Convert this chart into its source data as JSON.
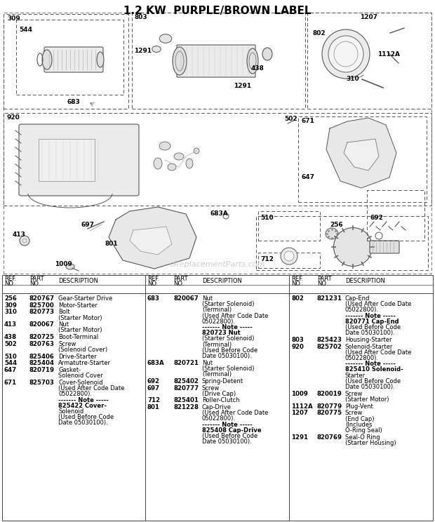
{
  "title": "1.2 KW  PURPLE/BROWN LABEL",
  "title_fontsize": 11,
  "bg": "#ffffff",
  "fg": "#000000",
  "gray": "#888888",
  "lightgray": "#cccccc",
  "diag_bg": "#f5f5f5",
  "watermark": "eReplacementParts.com",
  "col1_rows": [
    [
      "256",
      "820767",
      [
        "Gear-Starter Drive"
      ]
    ],
    [
      "309",
      "825700",
      [
        "Motor-Starter"
      ]
    ],
    [
      "310",
      "820773",
      [
        "Bolt",
        "(Starter Motor)"
      ]
    ],
    [
      "413",
      "820067",
      [
        "Nut",
        "(Starter Motor)"
      ]
    ],
    [
      "438",
      "820725",
      [
        "Boot-Terminal"
      ]
    ],
    [
      "502",
      "820763",
      [
        "Screw",
        "(Solenoid Cover)"
      ]
    ],
    [
      "510",
      "825406",
      [
        "Drive-Starter"
      ]
    ],
    [
      "544",
      "825404",
      [
        "Armatutre-Starter"
      ]
    ],
    [
      "647",
      "820719",
      [
        "Gasket-",
        "Solenoid Cover"
      ]
    ],
    [
      "671",
      "825703",
      [
        "Cover-Solenoid",
        "(Used After Code Date",
        "05022800).",
        "------- Note -----",
        "825422 Cover-",
        "Solenoid",
        "(Used Before Code",
        "Date 05030100)."
      ]
    ]
  ],
  "col2_rows": [
    [
      "683",
      "820067",
      [
        "Nut",
        "(Starter Solenoid)",
        "(Terminal)",
        "(Used After Code Date",
        "05022800).",
        "------- Note -----",
        "820723 Nut",
        "(Starter Solenoid)",
        "(Terminal)",
        "(Used Before Code",
        "Date 05030100)."
      ]
    ],
    [
      "683A",
      "820721",
      [
        "Nut",
        "(Starter Solenoid)",
        "(Terminal)"
      ]
    ],
    [
      "692",
      "825402",
      [
        "Spring-Detent"
      ]
    ],
    [
      "697",
      "820777",
      [
        "Screw",
        "(Drive Cap)"
      ]
    ],
    [
      "712",
      "825401",
      [
        "Roller-Clutch"
      ]
    ],
    [
      "801",
      "821228",
      [
        "Cap-Drive",
        "(Used After Code Date",
        "05022800).",
        "------- Note -----",
        "825408 Cap-Drive",
        "(Used Before Code",
        "Date 05030100)."
      ]
    ]
  ],
  "col3_rows": [
    [
      "802",
      "821231",
      [
        "Cap-End",
        "(Used After Code Date",
        "05022800).",
        "------- Note -----",
        "820771 Cap-End",
        "(Used Before Code",
        "Date 05030100)."
      ]
    ],
    [
      "803",
      "825423",
      [
        "Housing-Starter"
      ]
    ],
    [
      "920",
      "825702",
      [
        "Solenoid-Starter",
        "(Used After Code Date",
        "05022800).",
        "------- Note -----",
        "825410 Solenoid-",
        "Starter",
        "(Used Before Code",
        "Date 05030100)."
      ]
    ],
    [
      "1009",
      "820019",
      [
        "Screw",
        "(Starter Motor)"
      ]
    ],
    [
      "1112A",
      "820779",
      [
        "Plug-Vent"
      ]
    ],
    [
      "1207",
      "820775",
      [
        "Screw",
        "(End Cap)",
        "(Includes",
        "O-Ring Seal)"
      ]
    ],
    [
      "1291",
      "820769",
      [
        "Seal-O Ring",
        "(Starter Housing)"
      ]
    ]
  ]
}
